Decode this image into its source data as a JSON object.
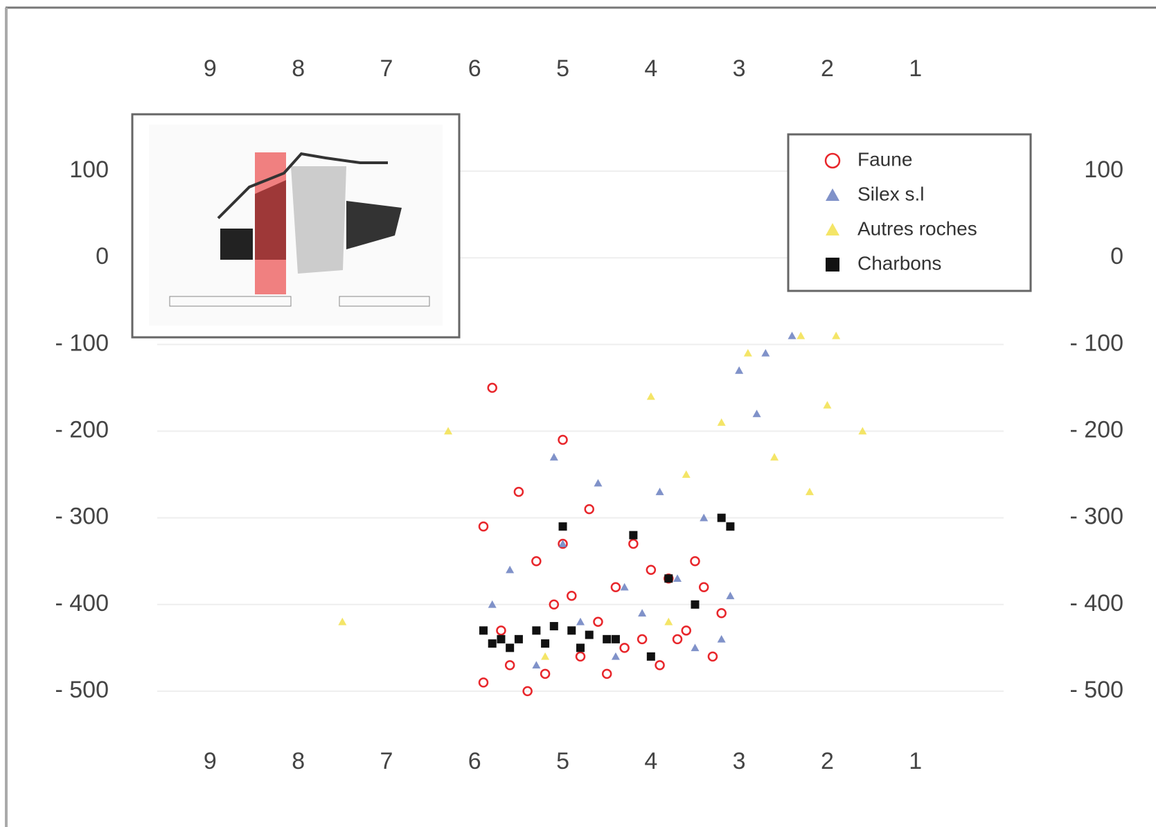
{
  "chart_data": {
    "type": "scatter",
    "xticks": [
      9,
      8,
      7,
      6,
      5,
      4,
      3,
      2,
      1
    ],
    "xlim": [
      9.6,
      0
    ],
    "ylim": [
      160,
      -560
    ],
    "yticks": [
      100,
      0,
      {
        "value": -100,
        "label": "- 100"
      },
      {
        "value": -200,
        "label": "- 200"
      },
      {
        "value": -300,
        "label": "- 300"
      },
      {
        "value": -400,
        "label": "- 400"
      },
      {
        "value": -500,
        "label": "- 500"
      }
    ],
    "grid": true,
    "legend": "top-right",
    "series": [
      {
        "name": "Faune",
        "color": "#e8262b",
        "marker": "circle",
        "x": [
          5.8,
          5.5,
          5.0,
          4.7,
          4.2,
          3.8,
          3.4,
          5.9,
          5.3,
          4.9,
          4.4,
          4.0,
          3.5,
          3.2,
          5.7,
          5.1,
          4.6,
          4.1,
          3.6,
          5.6,
          5.2,
          4.8,
          4.3,
          3.9,
          3.3,
          5.4,
          4.5,
          3.7,
          5.9,
          5.0
        ],
        "values": [
          -150,
          -270,
          -210,
          -290,
          -330,
          -370,
          -380,
          -310,
          -350,
          -390,
          -380,
          -360,
          -350,
          -410,
          -430,
          -400,
          -420,
          -440,
          -430,
          -470,
          -480,
          -460,
          -450,
          -470,
          -460,
          -500,
          -480,
          -440,
          -490,
          -330
        ]
      },
      {
        "name": "Silex s.l",
        "color": "#6a7fc0",
        "marker": "triangle",
        "x": [
          3.0,
          2.7,
          2.4,
          5.1,
          4.6,
          3.9,
          3.4,
          5.6,
          5.0,
          4.3,
          3.7,
          3.1,
          5.8,
          4.8,
          4.1,
          3.5,
          5.3,
          4.4,
          3.2,
          2.8
        ],
        "values": [
          -130,
          -110,
          -90,
          -230,
          -260,
          -270,
          -300,
          -360,
          -330,
          -380,
          -370,
          -390,
          -400,
          -420,
          -410,
          -450,
          -470,
          -460,
          -440,
          -180
        ]
      },
      {
        "name": "Autres roches",
        "color": "#f2e14c",
        "marker": "triangle",
        "x": [
          2.9,
          2.3,
          2.0,
          1.6,
          3.2,
          2.6,
          2.2,
          6.3,
          4.0,
          3.6,
          5.2,
          4.5,
          3.8,
          7.5,
          1.9
        ],
        "values": [
          -110,
          -90,
          -170,
          -200,
          -190,
          -230,
          -270,
          -200,
          -160,
          -250,
          -460,
          -440,
          -420,
          -420,
          -90
        ]
      },
      {
        "name": "Charbons",
        "color": "#111111",
        "marker": "square",
        "x": [
          5.9,
          5.7,
          5.5,
          5.3,
          5.1,
          4.9,
          4.7,
          4.5,
          5.6,
          5.2,
          4.8,
          4.4,
          5.0,
          4.2,
          3.8,
          3.2,
          3.1,
          4.0,
          5.8,
          3.5
        ],
        "values": [
          -430,
          -440,
          -440,
          -430,
          -425,
          -430,
          -435,
          -440,
          -450,
          -445,
          -450,
          -440,
          -310,
          -320,
          -370,
          -300,
          -310,
          -460,
          -445,
          -400
        ]
      }
    ]
  }
}
